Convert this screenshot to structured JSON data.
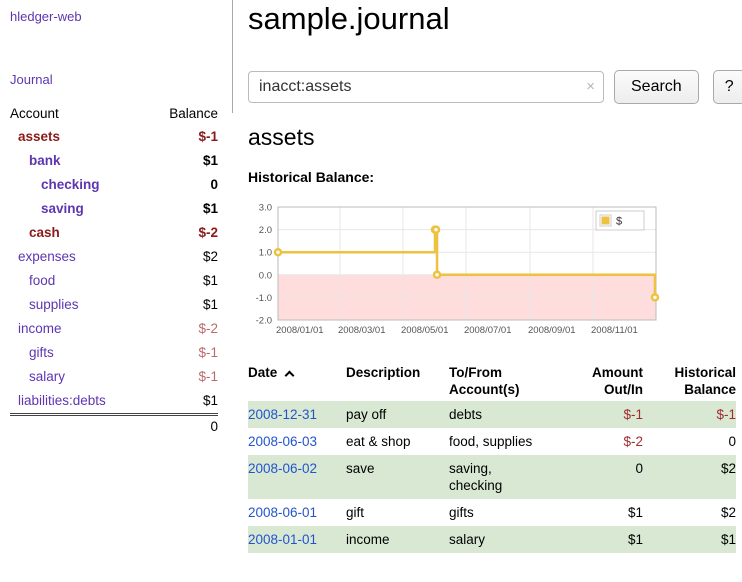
{
  "app": {
    "brand": "hledger-web"
  },
  "colors": {
    "link_purple": "#5e35b1",
    "date_link_blue": "#2255cc",
    "negative_strong": "#8b1a1a",
    "negative_soft": "#bb6a6a",
    "register_negative": "#a32b2b",
    "row_stripe_green": "#d8e8d3",
    "chart_line": "#edc240",
    "chart_negative_region": "#ffdddd"
  },
  "sidebar": {
    "nav_journal": "Journal",
    "accounts": {
      "col_account": "Account",
      "col_balance": "Balance",
      "rows": [
        {
          "name": "assets",
          "balance": "$-1"
        },
        {
          "name": "bank",
          "balance": "$1"
        },
        {
          "name": "checking",
          "balance": "0"
        },
        {
          "name": "saving",
          "balance": "$1"
        },
        {
          "name": "cash",
          "balance": "$-2"
        },
        {
          "name": "expenses",
          "balance": "$2"
        },
        {
          "name": "food",
          "balance": "$1"
        },
        {
          "name": "supplies",
          "balance": "$1"
        },
        {
          "name": "income",
          "balance": "$-2"
        },
        {
          "name": "gifts",
          "balance": "$-1"
        },
        {
          "name": "salary",
          "balance": "$-1"
        },
        {
          "name": "liabilities:debts",
          "balance": "$1"
        }
      ],
      "total": "0"
    }
  },
  "header": {
    "title": "sample.journal"
  },
  "search": {
    "value": "inacct:assets",
    "clear_label": "×",
    "button_label": "Search",
    "help_label": "?"
  },
  "account_page": {
    "heading": "assets",
    "chart_title": "Historical Balance:"
  },
  "chart_data": {
    "type": "line",
    "step": true,
    "title": "Historical Balance",
    "legend": [
      {
        "label": "$",
        "color": "#edc240"
      }
    ],
    "x_range": [
      "2008-01-01",
      "2008-12-31"
    ],
    "x_ticks": [
      "2008/01/01",
      "2008/03/01",
      "2008/05/01",
      "2008/07/01",
      "2008/09/01",
      "2008/11/01"
    ],
    "y_ticks": [
      3,
      2,
      1,
      0,
      -1,
      -2
    ],
    "ylim": [
      -2,
      3
    ],
    "points": [
      {
        "date": "2008-01-01",
        "value": 1
      },
      {
        "date": "2008-06-01",
        "value": 2
      },
      {
        "date": "2008-06-02",
        "value": 2
      },
      {
        "date": "2008-06-03",
        "value": 0
      },
      {
        "date": "2008-12-31",
        "value": -1
      }
    ],
    "line_color": "#edc240",
    "negative_region_color": "#ffdddd",
    "grid": true,
    "legend_position": "top-right"
  },
  "register": {
    "columns": {
      "date": "Date",
      "description": "Description",
      "account": "To/From Account(s)",
      "amount": "Amount Out/In",
      "balance": "Historical Balance"
    },
    "rows": [
      {
        "date": "2008-12-31",
        "description": "pay off",
        "account": "debts",
        "amount": "$-1",
        "balance": "$-1"
      },
      {
        "date": "2008-06-03",
        "description": "eat & shop",
        "account": "food, supplies",
        "amount": "$-2",
        "balance": "0"
      },
      {
        "date": "2008-06-02",
        "description": "save",
        "account": "saving,\nchecking",
        "amount": "0",
        "balance": "$2"
      },
      {
        "date": "2008-06-01",
        "description": "gift",
        "account": "gifts",
        "amount": "$1",
        "balance": "$2"
      },
      {
        "date": "2008-01-01",
        "description": "income",
        "account": "salary",
        "amount": "$1",
        "balance": "$1"
      }
    ]
  }
}
